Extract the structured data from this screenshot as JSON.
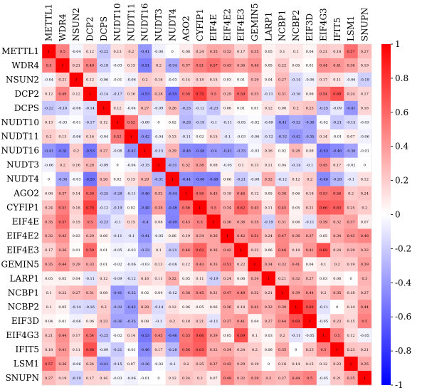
{
  "chart_data": {
    "type": "heatmap",
    "title": "",
    "labels": [
      "METTL1",
      "WDR4",
      "NSUN2",
      "DCP2",
      "DCPS",
      "NUDT10",
      "NUDT11",
      "NUDT16",
      "NUDT3",
      "NUDT4",
      "AGO2",
      "CYFIP1",
      "EIF4E",
      "EIF4E2",
      "EIF4E3",
      "GEMIN5",
      "LARP1",
      "NCBP1",
      "NCBP2",
      "EIF3D",
      "EIF4G3",
      "IFIT5",
      "LSM1",
      "SNUPN"
    ],
    "matrix": [
      [
        "1",
        "0.5",
        "-0.04",
        "0.12",
        "-0.22",
        "0.13",
        "0.2",
        "-0.41",
        "-0.06",
        "0",
        "0.08",
        "0.24",
        "0.35",
        "0.32",
        "0.17",
        "0.35",
        "0.05",
        "0.1",
        "0.1",
        "0.04",
        "0.21",
        "0.18",
        "0.57",
        "0.27"
      ],
      [
        "0.5",
        "1",
        "0.21",
        "0.49",
        "-0.18",
        "-0.03",
        "0.13",
        "-0.51",
        "0.2",
        "-0.34",
        "0.37",
        "0.51",
        "0.57",
        "0.43",
        "0.36",
        "0.44",
        "0.05",
        "0.22",
        "0.05",
        "0.01",
        "0.44",
        "0.41",
        "0.36",
        "0.19"
      ],
      [
        "-0.04",
        "0.21",
        "1",
        "0.12",
        "-0.06",
        "-0.01",
        "-0.06",
        "0.2",
        "0.16",
        "-0.03",
        "0.14",
        "0.18",
        "0.15",
        "0.03",
        "0.01",
        "0.29",
        "0.04",
        "0.27",
        "-0.14",
        "-0.06",
        "0.17",
        "0.11",
        "-0.06",
        "-0.19"
      ],
      [
        "0.12",
        "0.49",
        "0.12",
        "1",
        "-0.14",
        "-0.17",
        "0.16",
        "-0.53",
        "0.28",
        "-0.55",
        "0.58",
        "0.75",
        "0.5",
        "0.29",
        "0.59",
        "0.33",
        "-0.11",
        "0.31",
        "-0.16",
        "0.06",
        "0.54",
        "0.68",
        "0.24",
        "0.17"
      ],
      [
        "-0.22",
        "-0.18",
        "-0.06",
        "-0.14",
        "1",
        "0.12",
        "-0.04",
        "0.27",
        "-0.09",
        "0.26",
        "-0.25",
        "-0.12",
        "-0.23",
        "0.06",
        "0.01",
        "0.01",
        "0.12",
        "0.08",
        "0.2",
        "0.23",
        "-0.25",
        "-0.09",
        "-0.41",
        "0.16"
      ],
      [
        "0.13",
        "-0.03",
        "-0.01",
        "-0.17",
        "0.12",
        "1",
        "0.52",
        "-0.08",
        "0",
        "0.02",
        "-0.28",
        "-0.19",
        "-0.1",
        "-0.11",
        "-0.05",
        "-0.02",
        "-0.09",
        "-0.41",
        "-0.32",
        "-0.36",
        "-0.02",
        "-0.21",
        "-0.15",
        "-0.03"
      ],
      [
        "0.2",
        "0.13",
        "-0.06",
        "0.16",
        "-0.04",
        "0.52",
        "1",
        "-0.42",
        "-0.04",
        "0.13",
        "-0.11",
        "0.02",
        "0.15",
        "-0.1",
        "-0.03",
        "-0.06",
        "-0.12",
        "-0.32",
        "-0.42",
        "-0.35",
        "0.14",
        "-0.01",
        "0.07",
        "-0.06"
      ],
      [
        "-0.41",
        "-0.51",
        "0.2",
        "-0.53",
        "0.27",
        "-0.08",
        "-0.42",
        "1",
        "-0.15",
        "0.29",
        "-0.46",
        "-0.48",
        "-0.4",
        "-0.41",
        "-0.33",
        "-0.03",
        "0.16",
        "0.02",
        "0.28",
        "0.08",
        "-0.53",
        "-0.46",
        "-0.36",
        "-0.01"
      ],
      [
        "-0.06",
        "0.2",
        "0.16",
        "0.28",
        "-0.09",
        "0",
        "-0.04",
        "-0.15",
        "1",
        "-0.31",
        "0.32",
        "0.38",
        "0.08",
        "-0.05",
        "0.1",
        "0.13",
        "0.11",
        "0.04",
        "-0.14",
        "-0.1",
        "0.45",
        "0.17",
        "-0.02",
        "0"
      ],
      [
        "0",
        "-0.34",
        "-0.03",
        "-0.55",
        "0.26",
        "0.02",
        "0.13",
        "0.29",
        "-0.31",
        "1",
        "-0.44",
        "-0.48",
        "-0.49",
        "0.06",
        "-0.21",
        "-0.08",
        "0.32",
        "-0.12",
        "0.12",
        "0.2",
        "-0.46",
        "-0.28",
        "-0.1",
        "0.12"
      ],
      [
        "0.08",
        "0.37",
        "0.14",
        "0.58",
        "-0.25",
        "-0.28",
        "-0.11",
        "-0.46",
        "0.32",
        "-0.44",
        "1",
        "0.56",
        "0.43",
        "0.19",
        "0.46",
        "0.12",
        "0.05",
        "0.38",
        "0.06",
        "0.18",
        "0.53",
        "0.56",
        "0.2",
        "0.24"
      ],
      [
        "0.24",
        "0.51",
        "0.18",
        "0.75",
        "-0.12",
        "-0.19",
        "0.02",
        "-0.48",
        "0.38",
        "-0.48",
        "0.56",
        "1",
        "0.5",
        "0.34",
        "0.62",
        "0.43",
        "0.11",
        "0.45",
        "0.05",
        "0.21",
        "0.66",
        "0.63",
        "0.25",
        "0.2"
      ],
      [
        "0.35",
        "0.57",
        "0.15",
        "0.5",
        "-0.23",
        "-0.1",
        "0.15",
        "-0.4",
        "0.08",
        "-0.49",
        "0.43",
        "0.5",
        "1",
        "0.36",
        "0.36",
        "0.35",
        "-0.19",
        "0.31",
        "0.06",
        "-0.11",
        "0.39",
        "0.32",
        "0.37",
        "0.07"
      ],
      [
        "0.32",
        "0.43",
        "0.03",
        "0.29",
        "0.06",
        "-0.11",
        "-0.1",
        "-0.41",
        "-0.05",
        "0.06",
        "0.19",
        "0.34",
        "0.36",
        "1",
        "0.42",
        "0.51",
        "0.24",
        "0.47",
        "0.36",
        "0.37",
        "0.05",
        "0.34",
        "0.43",
        "0.48"
      ],
      [
        "0.17",
        "0.36",
        "0.01",
        "0.59",
        "0.01",
        "-0.05",
        "-0.03",
        "-0.33",
        "0.1",
        "-0.21",
        "0.46",
        "0.62",
        "0.36",
        "0.42",
        "1",
        "0.22",
        "0.06",
        "0.48",
        "0.18",
        "0.41",
        "0.69",
        "0.24",
        "0.29",
        "0.32"
      ],
      [
        "0.35",
        "0.44",
        "0.29",
        "0.33",
        "0.01",
        "-0.02",
        "-0.06",
        "-0.03",
        "0.13",
        "-0.08",
        "0.12",
        "0.43",
        "0.35",
        "0.51",
        "0.22",
        "1",
        "0.34",
        "0.32",
        "0.41",
        "0.04",
        "0.1",
        "0.2",
        "0.19",
        "0.39"
      ],
      [
        "0.05",
        "0.05",
        "0.04",
        "-0.11",
        "0.12",
        "-0.09",
        "-0.12",
        "0.16",
        "0.11",
        "0.32",
        "0.05",
        "0.11",
        "-0.19",
        "0.24",
        "0.06",
        "0.34",
        "1",
        "0.21",
        "0.32",
        "0.27",
        "0.03",
        "0.06",
        "0",
        "0.3"
      ],
      [
        "0.1",
        "0.22",
        "0.27",
        "0.31",
        "0.08",
        "-0.41",
        "-0.32",
        "0.02",
        "0.04",
        "-0.12",
        "0.38",
        "0.45",
        "0.31",
        "0.47",
        "0.48",
        "0.32",
        "0.21",
        "1",
        "0.39",
        "0.44",
        "0.2",
        "0.35",
        "0.18",
        "0.27"
      ],
      [
        "0.1",
        "0.05",
        "-0.14",
        "-0.16",
        "0.2",
        "-0.32",
        "-0.42",
        "0.28",
        "-0.14",
        "0.12",
        "0.06",
        "0.05",
        "0.06",
        "0.36",
        "0.18",
        "0.41",
        "0.32",
        "0.39",
        "1",
        "0.69",
        "-0.11",
        "0",
        "0.14",
        "0.44"
      ],
      [
        "0.04",
        "0.01",
        "-0.06",
        "0.06",
        "0.23",
        "-0.36",
        "-0.35",
        "0.08",
        "-0.1",
        "0.2",
        "0.18",
        "0.21",
        "-0.11",
        "0.37",
        "0.41",
        "0.04",
        "0.27",
        "0.44",
        "0.69",
        "1",
        "-0.05",
        "0.23",
        "0.15",
        "0.5"
      ],
      [
        "0.21",
        "0.44",
        "0.17",
        "0.54",
        "-0.25",
        "-0.02",
        "0.14",
        "-0.53",
        "0.45",
        "-0.46",
        "0.53",
        "0.66",
        "0.39",
        "0.05",
        "0.69",
        "0.1",
        "0.03",
        "0.2",
        "-0.11",
        "-0.05",
        "1",
        "0.5",
        "0.12",
        "-0.05"
      ],
      [
        "0.18",
        "0.41",
        "0.11",
        "0.68",
        "-0.09",
        "-0.21",
        "-0.01",
        "-0.46",
        "0.17",
        "-0.28",
        "0.56",
        "0.63",
        "0.32",
        "0.34",
        "0.24",
        "0.2",
        "0.06",
        "0.35",
        "0",
        "0.23",
        "0.5",
        "1",
        "0.23",
        "0.21"
      ],
      [
        "0.57",
        "0.36",
        "-0.06",
        "0.24",
        "-0.41",
        "-0.15",
        "0.07",
        "-0.36",
        "-0.02",
        "-0.1",
        "0.2",
        "0.25",
        "0.37",
        "0.43",
        "0.29",
        "0.19",
        "0",
        "0.18",
        "0.14",
        "0.15",
        "0.12",
        "0.23",
        "1",
        "0.35"
      ],
      [
        "0.27",
        "0.19",
        "-0.19",
        "0.17",
        "0.16",
        "-0.03",
        "-0.06",
        "-0.01",
        "0",
        "0.12",
        "0.24",
        "0.2",
        "0.07",
        "0.48",
        "0.32",
        "0.39",
        "0.3",
        "0.27",
        "0.44",
        "0.5",
        "-0.05",
        "0.21",
        "0.35",
        "1"
      ]
    ],
    "colorbar": {
      "min": -1,
      "max": 1,
      "ticks": [
        "1",
        "0.8",
        "0.6",
        "0.4",
        "0.2",
        "0",
        "-0.2",
        "-0.4",
        "-0.6",
        "-0.8",
        "-1"
      ],
      "colors": {
        "low": "#0000ff",
        "mid": "#ffffff",
        "high": "#ff0000"
      }
    }
  }
}
